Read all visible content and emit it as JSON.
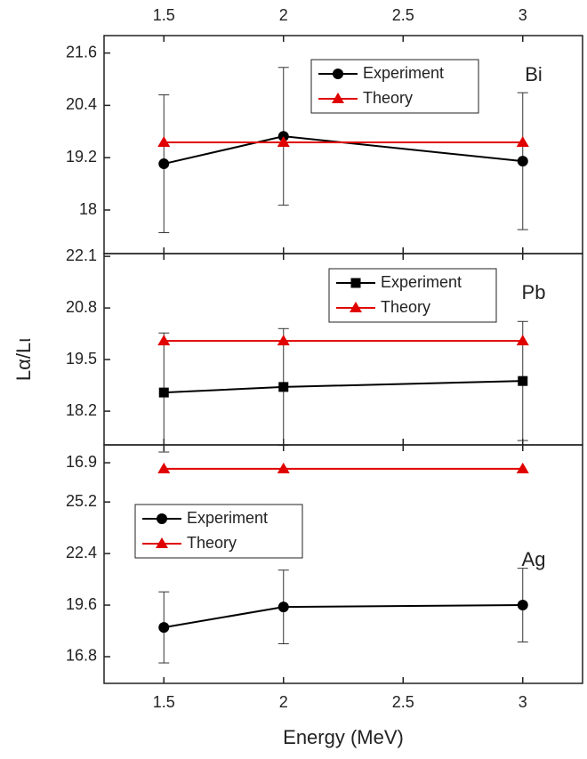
{
  "chart_data": [
    {
      "type": "line",
      "panel_label": "Bi",
      "legend_loc": "upper center",
      "x": [
        1.5,
        2.0,
        3.0
      ],
      "xlim": [
        1.25,
        3.25
      ],
      "xticks": [
        1.5,
        2.0,
        2.5,
        3.0
      ],
      "ylim": [
        17.0,
        22.0
      ],
      "yticks": [
        21.6,
        20.4,
        19.2,
        18.0
      ],
      "series": [
        {
          "name": "Experiment",
          "color": "#000000",
          "marker": "circle",
          "values": [
            19.06,
            19.69,
            19.12
          ],
          "errors": [
            1.58,
            1.58,
            1.57
          ]
        },
        {
          "name": "Theory",
          "color": "#e00000",
          "marker": "triangle",
          "values": [
            19.55,
            19.55,
            19.55
          ]
        }
      ]
    },
    {
      "type": "line",
      "panel_label": "Pb",
      "legend_loc": "upper right",
      "y_label": "Lα/Lι",
      "x": [
        1.5,
        2.0,
        3.0
      ],
      "ylim": [
        17.35,
        22.17
      ],
      "yticks": [
        22.1,
        20.8,
        19.5,
        18.2,
        16.9
      ],
      "series": [
        {
          "name": "Experiment",
          "color": "#000000",
          "marker": "square",
          "values": [
            18.67,
            18.81,
            18.96
          ],
          "errors": [
            1.5,
            1.47,
            1.5
          ]
        },
        {
          "name": "Theory",
          "color": "#e00000",
          "marker": "triangle",
          "values": [
            19.97,
            19.97,
            19.97
          ]
        }
      ]
    },
    {
      "type": "line",
      "panel_label": "Ag",
      "legend_loc": "center left",
      "x_label": "Energy (MeV)",
      "x": [
        1.5,
        2.0,
        3.0
      ],
      "xlim": [
        1.25,
        3.25
      ],
      "xticks": [
        1.5,
        2.0,
        2.5,
        3.0
      ],
      "ylim": [
        15.35,
        28.3
      ],
      "yticks": [
        25.2,
        22.4,
        19.6,
        16.8
      ],
      "series": [
        {
          "name": "Experiment",
          "color": "#000000",
          "marker": "circle",
          "values": [
            18.39,
            19.5,
            19.6
          ],
          "errors": [
            1.93,
            2.0,
            2.0
          ]
        },
        {
          "name": "Theory",
          "color": "#e00000",
          "marker": "triangle",
          "values": [
            27.0,
            27.0,
            27.0
          ]
        }
      ]
    }
  ]
}
